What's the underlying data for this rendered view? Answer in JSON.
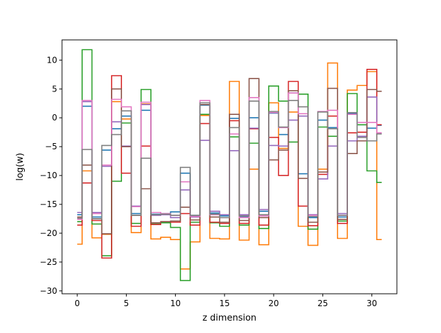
{
  "chart_data": {
    "type": "line",
    "step": "mid",
    "title": "",
    "xlabel": "z dimension",
    "ylabel": "log(w)",
    "xlim": [
      -1.55,
      32.55
    ],
    "ylim": [
      -30.5,
      13.5
    ],
    "xticks": [
      0,
      5,
      10,
      15,
      20,
      25,
      30
    ],
    "yticks": [
      -30,
      -25,
      -20,
      -15,
      -10,
      -5,
      0,
      5,
      10
    ],
    "x": [
      0,
      1,
      2,
      3,
      4,
      5,
      6,
      7,
      8,
      9,
      10,
      11,
      12,
      13,
      14,
      15,
      16,
      17,
      18,
      19,
      20,
      21,
      22,
      23,
      24,
      25,
      26,
      27,
      28,
      29,
      30,
      31
    ],
    "series": [
      {
        "color": "#1f77b4",
        "values": [
          -16.8,
          2.0,
          -17.2,
          -5.6,
          -1.9,
          0.3,
          -16.6,
          1.3,
          -16.7,
          -16.6,
          -16.3,
          -9.6,
          -16.9,
          2.2,
          -16.5,
          -17.0,
          -0.1,
          -17.1,
          0.0,
          -16.2,
          0.8,
          -2.9,
          4.3,
          -9.7,
          -17.3,
          -0.4,
          -1.7,
          -17.2,
          0.7,
          -1.2,
          -1.8,
          -1.3
        ]
      },
      {
        "color": "#ff7f0e",
        "values": [
          -21.9,
          -9.2,
          -20.8,
          -20.2,
          2.8,
          -0.2,
          -19.9,
          2.4,
          -21.0,
          -20.7,
          -21.1,
          -26.2,
          -21.5,
          0.4,
          -20.9,
          -21.0,
          6.3,
          -21.2,
          -8.9,
          -22.0,
          2.6,
          -5.3,
          1.0,
          -18.8,
          -22.1,
          -8.9,
          9.5,
          -20.9,
          4.8,
          5.6,
          8.0,
          -21.1
        ]
      },
      {
        "color": "#2ca02c",
        "values": [
          -18.0,
          11.8,
          -18.4,
          -23.9,
          -11.0,
          -0.9,
          -18.3,
          4.9,
          -18.4,
          -18.2,
          -19.0,
          -28.2,
          -18.1,
          0.6,
          -18.2,
          -18.8,
          -3.3,
          -18.6,
          -4.4,
          -19.2,
          5.5,
          2.9,
          -4.2,
          4.1,
          -19.3,
          -1.6,
          -3.2,
          -17.9,
          4.2,
          -1.2,
          -9.2,
          -11.2
        ]
      },
      {
        "color": "#d62728",
        "values": [
          -18.6,
          -11.3,
          -17.8,
          -24.3,
          7.3,
          -9.6,
          -18.8,
          -4.9,
          -18.5,
          -18.0,
          -18.1,
          -16.6,
          -18.6,
          -1.0,
          -18.1,
          -18.3,
          -0.5,
          -18.3,
          -1.9,
          -18.6,
          -3.4,
          -10.0,
          6.3,
          -15.3,
          -18.7,
          -9.8,
          0.3,
          -18.3,
          -2.6,
          -2.5,
          8.4,
          -1.2
        ]
      },
      {
        "color": "#9467bd",
        "values": [
          -16.4,
          2.8,
          -16.4,
          -8.4,
          -0.7,
          -4.9,
          -15.3,
          2.3,
          -16.9,
          -16.8,
          -17.3,
          -12.5,
          -17.2,
          -3.9,
          -16.2,
          -16.8,
          -5.7,
          -16.8,
          -1.8,
          -15.9,
          -4.8,
          -4.9,
          -0.4,
          0.3,
          -16.8,
          -10.6,
          -4.9,
          -16.6,
          -4.0,
          -3.2,
          3.6,
          -2.7
        ]
      },
      {
        "color": "#8c564b",
        "values": [
          -17.2,
          -8.2,
          -17.5,
          -20.1,
          5.0,
          -5.0,
          -16.9,
          -12.3,
          -18.2,
          -18.0,
          -17.9,
          -15.5,
          -17.7,
          2.3,
          -17.2,
          -18.1,
          0.6,
          -17.8,
          6.8,
          -17.3,
          -7.3,
          -5.6,
          4.7,
          -10.5,
          -18.1,
          -9.4,
          5.1,
          -17.6,
          -6.2,
          -4.0,
          4.9,
          4.6
        ]
      },
      {
        "color": "#e377c2",
        "values": [
          -17.6,
          3.0,
          -16.6,
          -8.2,
          3.2,
          1.9,
          -15.4,
          2.7,
          -16.4,
          -16.6,
          -16.9,
          -11.1,
          -17.1,
          3.0,
          -16.8,
          -17.3,
          -2.8,
          -17.3,
          3.5,
          -17.0,
          0.9,
          -1.7,
          4.3,
          0.7,
          -16.9,
          1.1,
          1.3,
          -16.9,
          0.6,
          -0.8,
          -0.8,
          -2.6
        ]
      },
      {
        "color": "#7f7f7f",
        "values": [
          -17.4,
          -5.5,
          -17.5,
          -4.8,
          -2.9,
          1.2,
          -16.9,
          -7.0,
          -16.8,
          -16.7,
          -16.9,
          -8.6,
          -16.9,
          2.6,
          -16.7,
          -17.3,
          -1.7,
          -17.0,
          2.9,
          -16.8,
          1.1,
          -1.6,
          3.0,
          1.9,
          -17.1,
          1.0,
          -1.9,
          -16.9,
          0.9,
          -3.4,
          -4.0,
          -2.8
        ]
      }
    ]
  }
}
